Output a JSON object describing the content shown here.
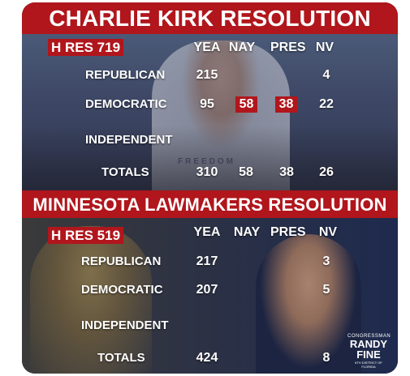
{
  "section1": {
    "title": "CHARLIE KIRK RESOLUTION",
    "resolution": "H RES 719",
    "headers": [
      "YEA",
      "NAY",
      "PRES",
      "NV"
    ],
    "rows": [
      {
        "party": "REPUBLICAN",
        "yea": "215",
        "nay": "",
        "pres": "",
        "nv": "4"
      },
      {
        "party": "DEMOCRATIC",
        "yea": "95",
        "nay": "58",
        "pres": "38",
        "nv": "22"
      },
      {
        "party": "INDEPENDENT",
        "yea": "",
        "nay": "",
        "pres": "",
        "nv": ""
      },
      {
        "party": "TOTALS",
        "yea": "310",
        "nay": "58",
        "pres": "38",
        "nv": "26"
      }
    ],
    "photo_text": "FREEDOM"
  },
  "section2": {
    "title": "MINNESOTA LAWMAKERS RESOLUTION",
    "resolution": "H RES 519",
    "headers": [
      "YEA",
      "NAY",
      "PRES",
      "NV"
    ],
    "rows": [
      {
        "party": "REPUBLICAN",
        "yea": "217",
        "nay": "",
        "pres": "",
        "nv": "3"
      },
      {
        "party": "DEMOCRATIC",
        "yea": "207",
        "nay": "",
        "pres": "",
        "nv": "5"
      },
      {
        "party": "INDEPENDENT",
        "yea": "",
        "nay": "",
        "pres": "",
        "nv": ""
      },
      {
        "party": "TOTALS",
        "yea": "424",
        "nay": "",
        "pres": "",
        "nv": "8"
      }
    ]
  },
  "logo": {
    "line1": "CONGRESSMAN",
    "line2a": "RANDY",
    "line2b": "FINE",
    "line3": "6TH DISTRICT OF FLORIDA"
  },
  "colors": {
    "band": "#b0161c",
    "text": "#ffffff",
    "card": "#1c2440"
  }
}
